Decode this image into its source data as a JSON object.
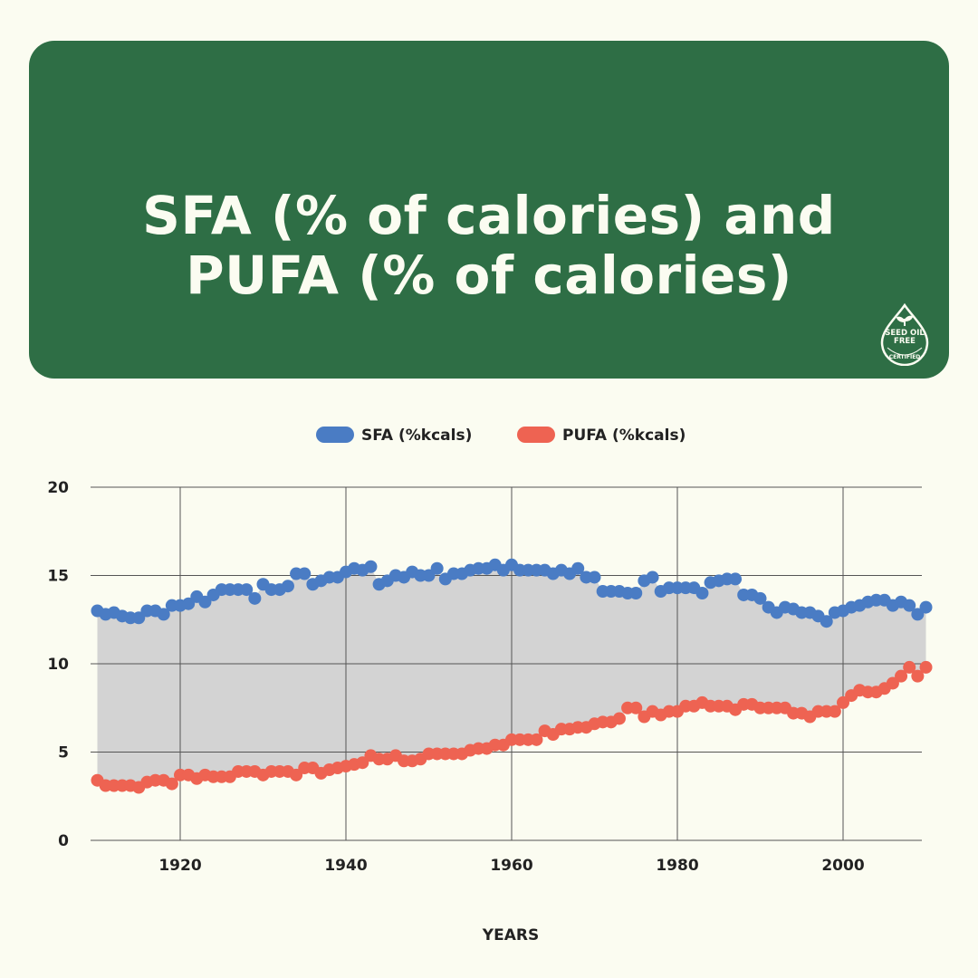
{
  "header": {
    "title_line1": "SFA (% of calories) and",
    "title_line2": "PUFA (% of calories)",
    "badge_text": "SEED OIL FREE CERTIFIED"
  },
  "colors": {
    "banner": "#2e6e45",
    "sfa": "#4a7cc4",
    "pufa": "#ee6352",
    "fill": "#d3d3d3",
    "background": "#fbfcf1"
  },
  "chart_data": {
    "type": "scatter",
    "title": "SFA (% of calories) and PUFA (% of calories)",
    "xlabel": "YEARS",
    "ylabel": "",
    "x_start": 1910,
    "x_end": 2010,
    "xlim": [
      1909,
      2010
    ],
    "ylim": [
      0,
      20
    ],
    "xticks": [
      "1920",
      "1940",
      "1960",
      "1980",
      "2000"
    ],
    "yticks": [
      "0",
      "5",
      "10",
      "15",
      "20"
    ],
    "grid": true,
    "legend_position": "top-center",
    "fill_between_series": true,
    "series": [
      {
        "name": "SFA (%kcals)",
        "values": [
          13.0,
          12.8,
          12.9,
          12.7,
          12.6,
          12.6,
          13.0,
          13.0,
          12.8,
          13.3,
          13.3,
          13.4,
          13.8,
          13.5,
          13.9,
          14.2,
          14.2,
          14.2,
          14.2,
          13.7,
          14.5,
          14.2,
          14.2,
          14.4,
          15.1,
          15.1,
          14.5,
          14.7,
          14.9,
          14.9,
          15.2,
          15.4,
          15.3,
          15.5,
          14.5,
          14.7,
          15.0,
          14.9,
          15.2,
          15.0,
          15.0,
          15.4,
          14.8,
          15.1,
          15.1,
          15.3,
          15.4,
          15.4,
          15.6,
          15.3,
          15.6,
          15.3,
          15.3,
          15.3,
          15.3,
          15.1,
          15.3,
          15.1,
          15.4,
          14.9,
          14.9,
          14.1,
          14.1,
          14.1,
          14.0,
          14.0,
          14.7,
          14.9,
          14.1,
          14.3,
          14.3,
          14.3,
          14.3,
          14.0,
          14.6,
          14.7,
          14.8,
          14.8,
          13.9,
          13.9,
          13.7,
          13.2,
          12.9,
          13.2,
          13.1,
          12.9,
          12.9,
          12.7,
          12.4,
          12.9,
          13.0,
          13.2,
          13.3,
          13.5,
          13.6,
          13.6,
          13.3,
          13.5,
          13.3,
          12.8,
          13.2
        ]
      },
      {
        "name": "PUFA (%kcals)",
        "values": [
          3.4,
          3.1,
          3.1,
          3.1,
          3.1,
          3.0,
          3.3,
          3.4,
          3.4,
          3.2,
          3.7,
          3.7,
          3.5,
          3.7,
          3.6,
          3.6,
          3.6,
          3.9,
          3.9,
          3.9,
          3.7,
          3.9,
          3.9,
          3.9,
          3.7,
          4.1,
          4.1,
          3.8,
          4.0,
          4.1,
          4.2,
          4.3,
          4.4,
          4.8,
          4.6,
          4.6,
          4.8,
          4.5,
          4.5,
          4.6,
          4.9,
          4.9,
          4.9,
          4.9,
          4.9,
          5.1,
          5.2,
          5.2,
          5.4,
          5.4,
          5.7,
          5.7,
          5.7,
          5.7,
          6.2,
          6.0,
          6.3,
          6.3,
          6.4,
          6.4,
          6.6,
          6.7,
          6.7,
          6.9,
          7.5,
          7.5,
          7.0,
          7.3,
          7.1,
          7.3,
          7.3,
          7.6,
          7.6,
          7.8,
          7.6,
          7.6,
          7.6,
          7.4,
          7.7,
          7.7,
          7.5,
          7.5,
          7.5,
          7.5,
          7.2,
          7.2,
          7.0,
          7.3,
          7.3,
          7.3,
          7.8,
          8.2,
          8.5,
          8.4,
          8.4,
          8.6,
          8.9,
          9.3,
          9.8,
          9.3,
          9.8
        ]
      }
    ]
  }
}
